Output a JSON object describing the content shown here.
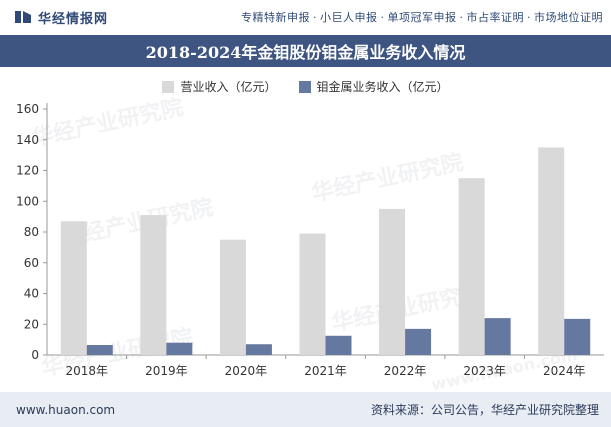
{
  "header": {
    "logo_text": "华经情报网",
    "services": [
      "专精特新申报",
      "小巨人申报",
      "单项冠军申报",
      "市占率证明",
      "市场地位证明"
    ],
    "separator": "·"
  },
  "watermarks": [
    "华经产业研究院",
    "www.huaon.com"
  ],
  "footer": {
    "website": "www.huaon.com",
    "source": "资料来源：公司公告，华经产业研究院整理"
  },
  "colors": {
    "title_bg": "#3d5580",
    "series_1": "#d9d9d9",
    "series_2": "#6579a0"
  },
  "chart_data": {
    "type": "bar",
    "title": "2018-2024年金钼股份钼金属业务收入情况",
    "categories": [
      "2018年",
      "2019年",
      "2020年",
      "2021年",
      "2022年",
      "2023年",
      "2024年"
    ],
    "series": [
      {
        "name": "营业收入（亿元）",
        "values": [
          87,
          91,
          75,
          79,
          95,
          115,
          135
        ]
      },
      {
        "name": "钼金属业务收入（亿元）",
        "values": [
          6.5,
          8,
          7,
          12.5,
          17,
          24,
          23.5
        ]
      }
    ],
    "yticks": [
      "0",
      "20",
      "40",
      "60",
      "80",
      "100",
      "120",
      "140",
      "160"
    ],
    "ylim": [
      0,
      160
    ],
    "xlabel": "",
    "ylabel": "",
    "legend_position": "top-center",
    "grid": false
  }
}
